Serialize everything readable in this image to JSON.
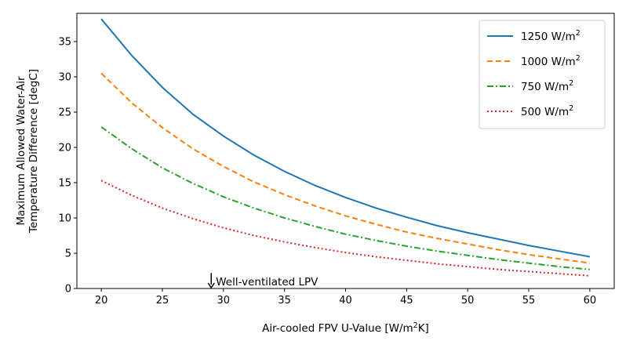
{
  "chart_data": {
    "type": "line",
    "xlabel": "Air-cooled FPV U-Value [W/m²K]",
    "ylabel_lines": [
      "Maximum Allowed Water-Air",
      "Temperature Difference [degC]"
    ],
    "xlim": [
      18,
      62
    ],
    "ylim": [
      0,
      39
    ],
    "xticks": [
      20,
      25,
      30,
      35,
      40,
      45,
      50,
      55,
      60
    ],
    "yticks": [
      0,
      5,
      10,
      15,
      20,
      25,
      30,
      35
    ],
    "x": [
      20,
      22.5,
      25,
      27.5,
      30,
      32.5,
      35,
      37.5,
      40,
      42.5,
      45,
      47.5,
      50,
      52.5,
      55,
      57.5,
      60
    ],
    "series": [
      {
        "name": "1250 W/m2",
        "label_base": "1250 W/m",
        "label_sup": "2",
        "color": "#1f77b4",
        "dash": "",
        "values": [
          38.2,
          33.0,
          28.5,
          24.7,
          21.6,
          18.9,
          16.6,
          14.6,
          12.9,
          11.4,
          10.1,
          8.9,
          7.9,
          7.0,
          6.1,
          5.3,
          4.5
        ]
      },
      {
        "name": "1000 W/m2",
        "label_base": "1000 W/m",
        "label_sup": "2",
        "color": "#ff7f0e",
        "dash": "7,4",
        "values": [
          30.5,
          26.3,
          22.8,
          19.8,
          17.3,
          15.1,
          13.3,
          11.7,
          10.3,
          9.1,
          8.0,
          7.1,
          6.3,
          5.5,
          4.8,
          4.2,
          3.6
        ]
      },
      {
        "name": "750 W/m2",
        "label_base": "750 W/m",
        "label_sup": "2",
        "color": "#2ca02c",
        "dash": "8,3,2,3",
        "values": [
          22.9,
          19.8,
          17.1,
          14.9,
          13.0,
          11.4,
          10.0,
          8.8,
          7.7,
          6.8,
          6.0,
          5.3,
          4.7,
          4.1,
          3.6,
          3.1,
          2.7
        ]
      },
      {
        "name": "500 W/m2",
        "label_base": "500 W/m",
        "label_sup": "2",
        "color": "#d62728",
        "dash": "2,3",
        "values": [
          15.3,
          13.2,
          11.4,
          9.9,
          8.6,
          7.5,
          6.6,
          5.8,
          5.1,
          4.5,
          4.0,
          3.5,
          3.1,
          2.7,
          2.4,
          2.1,
          1.8
        ]
      }
    ],
    "annotation": {
      "text": "Well-ventilated LPV",
      "x": 29,
      "y_top": 2.2,
      "y_bottom": 0
    },
    "legend_position": "top-right",
    "grid": false
  }
}
